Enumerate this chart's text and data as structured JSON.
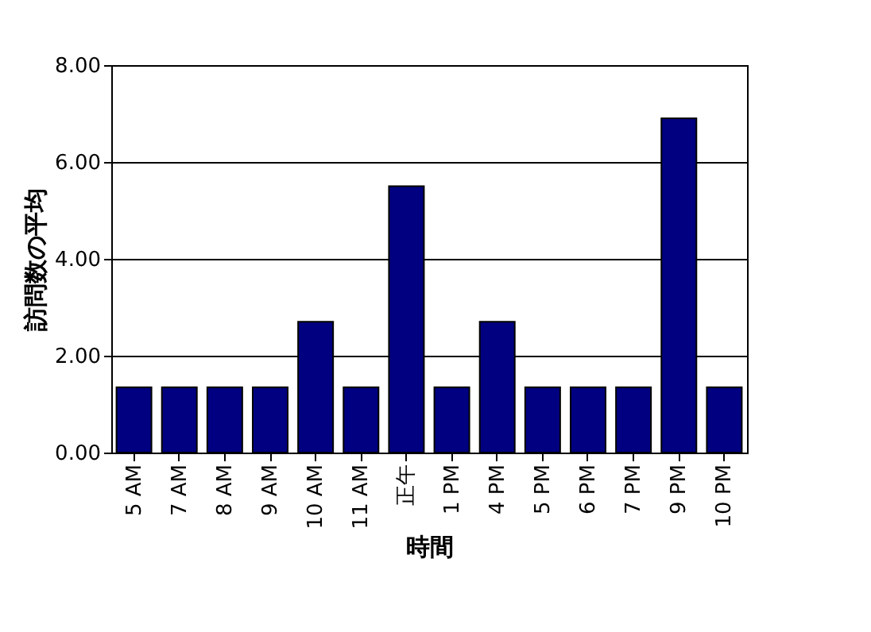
{
  "chart_data": {
    "type": "bar",
    "xlabel": "時間",
    "ylabel": "訪問数の平均",
    "categories": [
      "5 AM",
      "7 AM",
      "8 AM",
      "9 AM",
      "10 AM",
      "11 AM",
      "正午",
      "1 PM",
      "4 PM",
      "5 PM",
      "6 PM",
      "7 PM",
      "9 PM",
      "10 PM"
    ],
    "values": [
      1.35,
      1.35,
      1.35,
      1.35,
      2.7,
      1.35,
      5.5,
      1.35,
      2.7,
      1.35,
      1.35,
      1.35,
      6.9,
      1.35
    ],
    "color": "#000080",
    "ylim": [
      0,
      8
    ],
    "yticks": [
      {
        "value": 0,
        "label": "0.00"
      },
      {
        "value": 2,
        "label": "2.00"
      },
      {
        "value": 4,
        "label": "4.00"
      },
      {
        "value": 6,
        "label": "6.00"
      },
      {
        "value": 8,
        "label": "8.00"
      }
    ],
    "grid": "y"
  }
}
